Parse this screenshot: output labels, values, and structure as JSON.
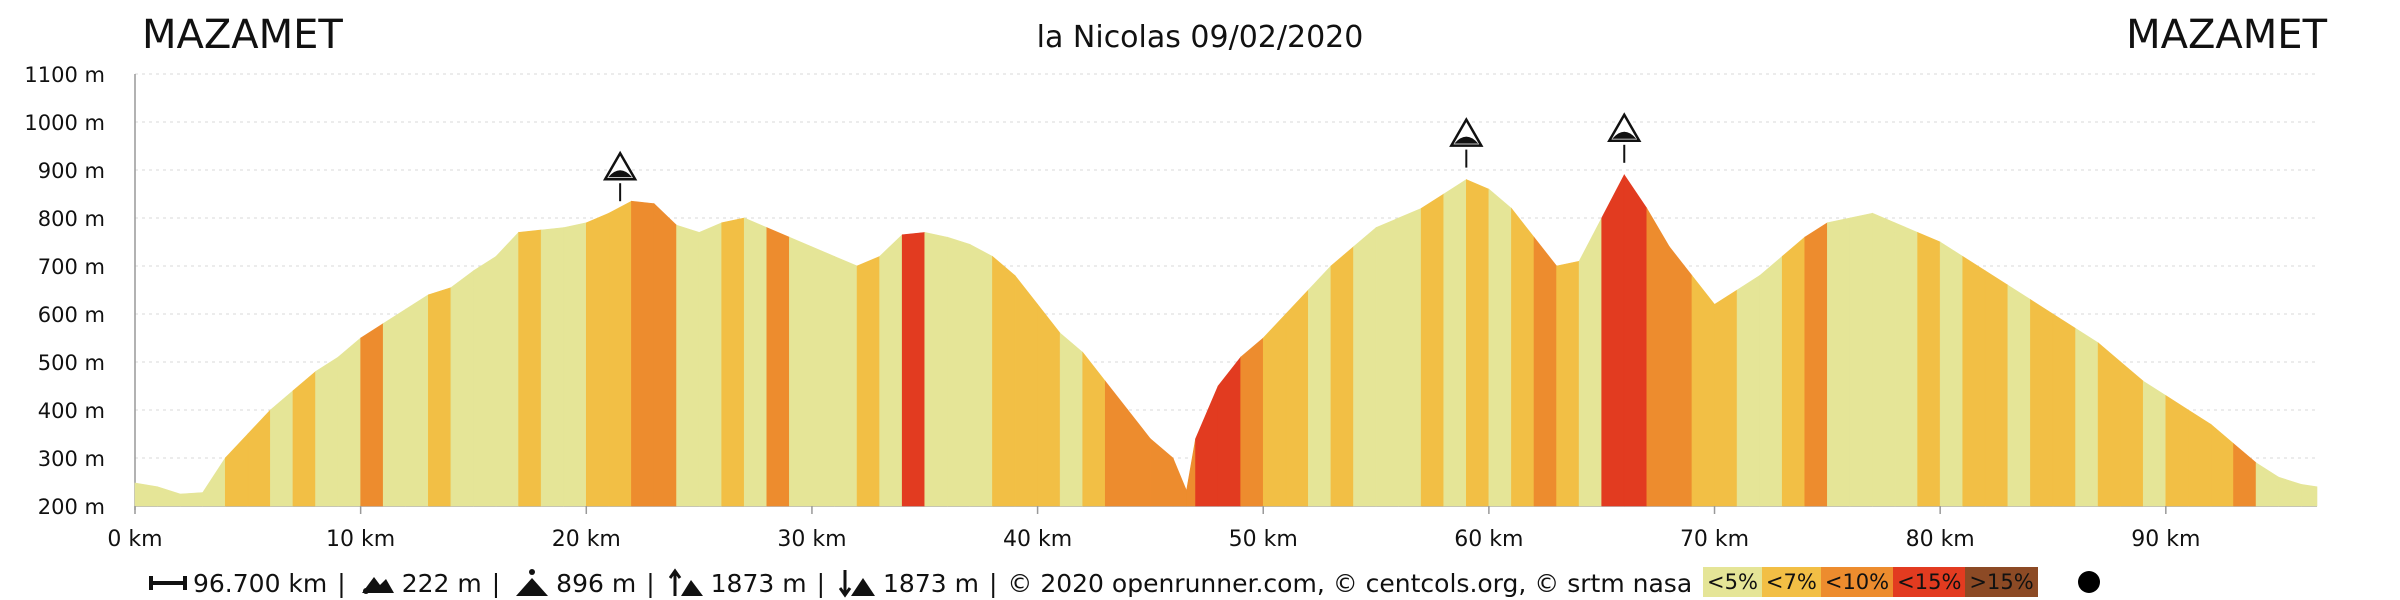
{
  "header": {
    "start": "MAZAMET",
    "title": "la Nicolas 09/02/2020",
    "end": "MAZAMET"
  },
  "footer": {
    "distance": "96.700 km",
    "min_altitude": "222 m",
    "max_altitude": "896 m",
    "ascent": "1873 m",
    "descent": "1873 m",
    "credits": "© 2020 openrunner.com, © centcols.org, © srtm nasa",
    "icons": [
      "distance-icon",
      "min-altitude-icon",
      "max-altitude-icon",
      "ascent-icon",
      "descent-icon"
    ]
  },
  "legend": {
    "items": [
      {
        "label": "<5%",
        "color": "#e5e597"
      },
      {
        "label": "<7%",
        "color": "#f2bf45"
      },
      {
        "label": "<10%",
        "color": "#ed8c2e"
      },
      {
        "label": "<15%",
        "color": "#e23b20"
      },
      {
        "label": ">15%",
        "color": "#8c4a25"
      }
    ],
    "marker_icon": "dot-icon"
  },
  "chart_data": {
    "type": "area",
    "title": "la Nicolas 09/02/2020",
    "xlabel": "",
    "ylabel": "",
    "xlim": [
      0,
      96.7
    ],
    "ylim": [
      200,
      1100
    ],
    "x_ticks": [
      "0 km",
      "10 km",
      "20 km",
      "30 km",
      "40 km",
      "50 km",
      "60 km",
      "70 km",
      "80 km",
      "90 km"
    ],
    "y_ticks": [
      "200 m",
      "300 m",
      "400 m",
      "500 m",
      "600 m",
      "700 m",
      "800 m",
      "900 m",
      "1000 m",
      "1100 m"
    ],
    "grid": "horizontal dashed",
    "series": [
      {
        "x": [
          0,
          1,
          2,
          3,
          4,
          5,
          6,
          7,
          8,
          9,
          10,
          11,
          12,
          13,
          14,
          15,
          16,
          17,
          18,
          19,
          20,
          21,
          22,
          23,
          24,
          25,
          26,
          27,
          28,
          29,
          30,
          31,
          32,
          33,
          34,
          35,
          36,
          37,
          38,
          39,
          40,
          41,
          42,
          43,
          44,
          45,
          46,
          46.6,
          47,
          48,
          49,
          50,
          51,
          52,
          53,
          54,
          55,
          56,
          57,
          58,
          59,
          60,
          61,
          62,
          63,
          64,
          65,
          66,
          67,
          68,
          69,
          70,
          71,
          72,
          73,
          74,
          75,
          76,
          77,
          78,
          79,
          80,
          81,
          82,
          83,
          84,
          85,
          86,
          87,
          88,
          89,
          90,
          91,
          92,
          93,
          94,
          95,
          96,
          96.7
        ],
        "y": [
          248,
          240,
          225,
          228,
          300,
          350,
          400,
          440,
          480,
          510,
          550,
          580,
          610,
          640,
          655,
          690,
          720,
          770,
          775,
          780,
          790,
          810,
          835,
          830,
          785,
          770,
          790,
          800,
          780,
          760,
          740,
          720,
          700,
          720,
          765,
          770,
          760,
          745,
          720,
          680,
          620,
          560,
          520,
          460,
          400,
          340,
          300,
          232,
          340,
          450,
          510,
          550,
          600,
          650,
          700,
          740,
          780,
          800,
          820,
          850,
          880,
          860,
          820,
          760,
          700,
          710,
          800,
          890,
          820,
          740,
          680,
          620,
          650,
          680,
          720,
          760,
          790,
          800,
          810,
          790,
          770,
          750,
          720,
          690,
          660,
          630,
          600,
          570,
          540,
          500,
          460,
          430,
          400,
          370,
          330,
          290,
          260,
          245,
          240
        ],
        "slope_class": [
          0,
          0,
          0,
          0,
          1,
          1,
          0,
          1,
          0,
          0,
          2,
          0,
          0,
          1,
          0,
          0,
          0,
          1,
          0,
          0,
          1,
          1,
          2,
          2,
          0,
          0,
          1,
          0,
          2,
          0,
          0,
          0,
          1,
          0,
          3,
          0,
          0,
          0,
          1,
          1,
          1,
          0,
          1,
          2,
          2,
          2,
          2,
          2,
          3,
          3,
          2,
          1,
          1,
          0,
          1,
          0,
          0,
          0,
          1,
          0,
          1,
          0,
          1,
          2,
          1,
          0,
          3,
          3,
          2,
          2,
          1,
          1,
          0,
          0,
          1,
          2,
          0,
          0,
          0,
          0,
          1,
          0,
          1,
          1,
          0,
          1,
          1,
          0,
          1,
          1,
          0,
          1,
          1,
          1,
          2,
          0,
          0,
          0,
          0
        ]
      }
    ],
    "summits_km": [
      21.5,
      59,
      66
    ]
  }
}
